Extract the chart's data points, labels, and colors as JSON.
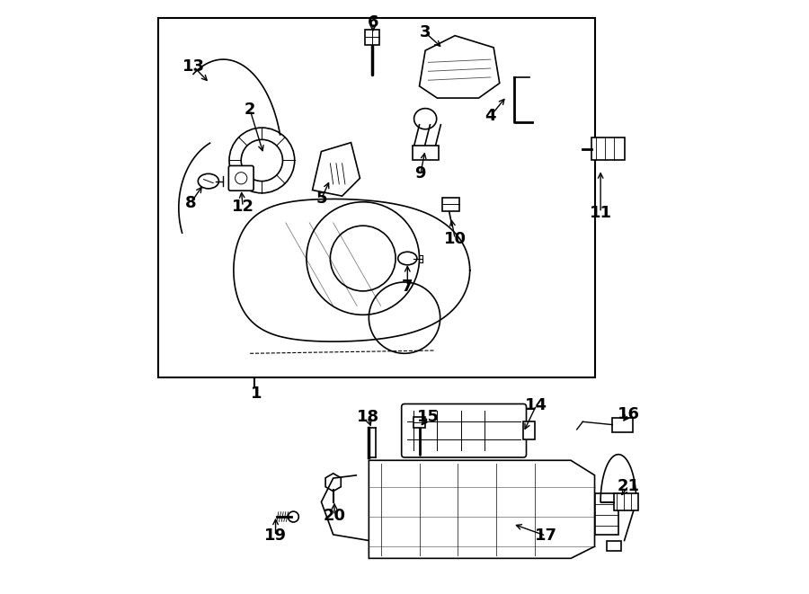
{
  "bg_color": "#ffffff",
  "line_color": "#000000",
  "font_size_labels": 13,
  "arrow_color": "#000000"
}
